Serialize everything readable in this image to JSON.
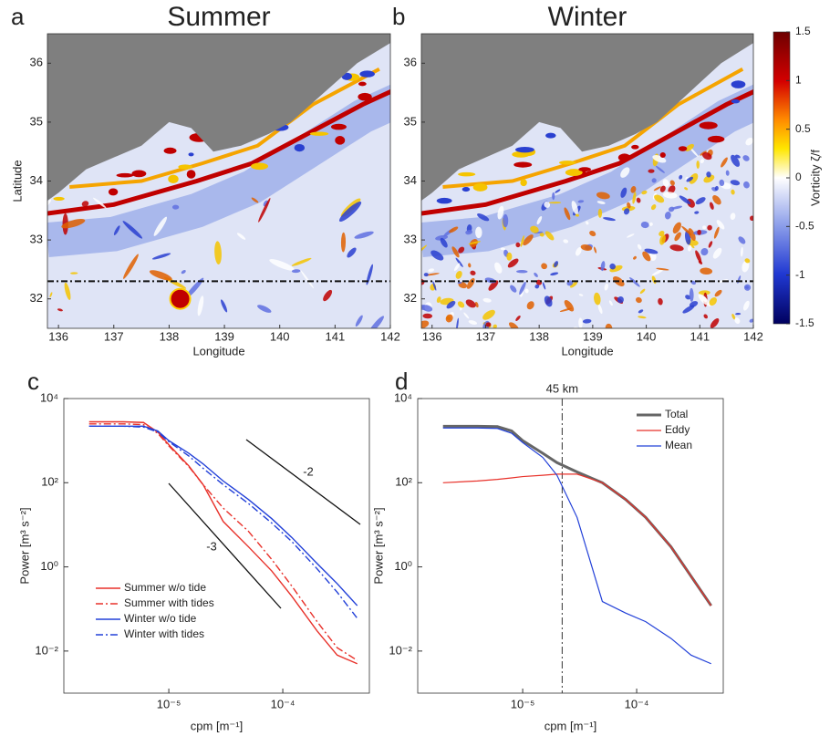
{
  "maps": [
    {
      "label": "a",
      "title": "Summer",
      "xlabel": "Longitude",
      "ylabel": "Latitude",
      "xlim": [
        135.8,
        142
      ],
      "xticks": [
        136,
        137,
        138,
        139,
        140,
        141,
        142
      ],
      "ylim": [
        31.5,
        36.5
      ],
      "yticks": [
        32,
        33,
        34,
        35,
        36
      ],
      "section_latitude": 32.3
    },
    {
      "label": "b",
      "title": "Winter",
      "xlabel": "Longitude",
      "xlim": [
        135.8,
        142
      ],
      "xticks": [
        136,
        137,
        138,
        139,
        140,
        141,
        142
      ],
      "ylim": [
        31.5,
        36.5
      ],
      "yticks": [
        32,
        33,
        34,
        35,
        36
      ],
      "section_latitude": 32.3
    }
  ],
  "colorbar": {
    "label": "Vorticity ζ/f",
    "lim": [
      -1.5,
      1.5
    ],
    "ticks": [
      1.5,
      1,
      0.5,
      0,
      -0.5,
      -1,
      -1.5
    ]
  },
  "chart_data": [
    {
      "type": "line",
      "panel_label": "c",
      "xlabel": "cpm [m⁻¹]",
      "ylabel": "Power [m³ s⁻²]",
      "xscale": "log",
      "yscale": "log",
      "xlim": [
        1.2e-06,
        0.000575
      ],
      "ylim": [
        0.001,
        10000
      ],
      "xticks": [
        {
          "value": 1e-05,
          "label": "10⁻⁵"
        },
        {
          "value": 0.0001,
          "label": "10⁻⁴"
        }
      ],
      "yticks": [
        {
          "value": 10000,
          "label": "10⁴"
        },
        {
          "value": 100,
          "label": "10²"
        },
        {
          "value": 1,
          "label": "10⁰"
        },
        {
          "value": 0.01,
          "label": "10⁻²"
        }
      ],
      "legend": "lower left",
      "annotations": [
        {
          "text": "-2"
        },
        {
          "text": "-3"
        }
      ],
      "x": [
        2e-06,
        4e-06,
        6e-06,
        8e-06,
        1e-05,
        1.5e-05,
        2e-05,
        3e-05,
        5e-05,
        8e-05,
        0.00012,
        0.0002,
        0.0003,
        0.00045
      ],
      "series": [
        {
          "name": "Summer w/o tide",
          "color": "#e8312a",
          "dash": "solid",
          "values": [
            2800,
            2800,
            2700,
            1600,
            800,
            250,
            90,
            12,
            3,
            0.8,
            0.2,
            0.03,
            0.008,
            0.005
          ]
        },
        {
          "name": "Summer with tides",
          "color": "#e8312a",
          "dash": "dashdot",
          "values": [
            2500,
            2500,
            2400,
            1500,
            750,
            240,
            90,
            25,
            7,
            1.5,
            0.35,
            0.05,
            0.012,
            0.006
          ]
        },
        {
          "name": "Winter w/o tide",
          "color": "#2240d8",
          "dash": "solid",
          "values": [
            2200,
            2200,
            2200,
            1700,
            1000,
            500,
            280,
            110,
            40,
            14,
            5,
            1.2,
            0.4,
            0.12
          ]
        },
        {
          "name": "Winter with tides",
          "color": "#2240d8",
          "dash": "dashdot",
          "values": [
            2200,
            2200,
            2100,
            1600,
            950,
            430,
            220,
            90,
            32,
            11,
            4,
            0.9,
            0.25,
            0.06
          ]
        }
      ]
    },
    {
      "type": "line",
      "panel_label": "d",
      "xlabel": "cpm [m⁻¹]",
      "ylabel": "Power [m³ s⁻²]",
      "xscale": "log",
      "yscale": "log",
      "xlim": [
        1.2e-06,
        0.000575
      ],
      "ylim": [
        0.001,
        10000
      ],
      "xticks": [
        {
          "value": 1e-05,
          "label": "10⁻⁵"
        },
        {
          "value": 0.0001,
          "label": "10⁻⁴"
        }
      ],
      "yticks": [
        {
          "value": 10000,
          "label": "10⁴"
        },
        {
          "value": 100,
          "label": "10²"
        },
        {
          "value": 1,
          "label": "10⁰"
        },
        {
          "value": 0.01,
          "label": "10⁻²"
        }
      ],
      "legend": "upper right",
      "vline": {
        "value": 2.22e-05,
        "label": "45 km"
      },
      "x": [
        2e-06,
        4e-06,
        6e-06,
        8e-06,
        1e-05,
        1.5e-05,
        2e-05,
        3e-05,
        5e-05,
        8e-05,
        0.00012,
        0.0002,
        0.0003,
        0.00045
      ],
      "series": [
        {
          "name": "Total",
          "color": "#666666",
          "dash": "solid",
          "width": 3,
          "values": [
            2200,
            2200,
            2150,
            1700,
            1000,
            500,
            300,
            180,
            100,
            40,
            15,
            3,
            0.6,
            0.12
          ]
        },
        {
          "name": "Eddy",
          "color": "#e8312a",
          "dash": "solid",
          "width": 1.2,
          "values": [
            100,
            110,
            120,
            130,
            140,
            150,
            160,
            160,
            100,
            40,
            15,
            3,
            0.6,
            0.12
          ]
        },
        {
          "name": "Mean",
          "color": "#2240d8",
          "dash": "solid",
          "width": 1.2,
          "values": [
            2000,
            2000,
            1950,
            1500,
            900,
            400,
            150,
            15,
            0.15,
            0.08,
            0.05,
            0.02,
            0.008,
            0.005
          ]
        }
      ]
    }
  ]
}
